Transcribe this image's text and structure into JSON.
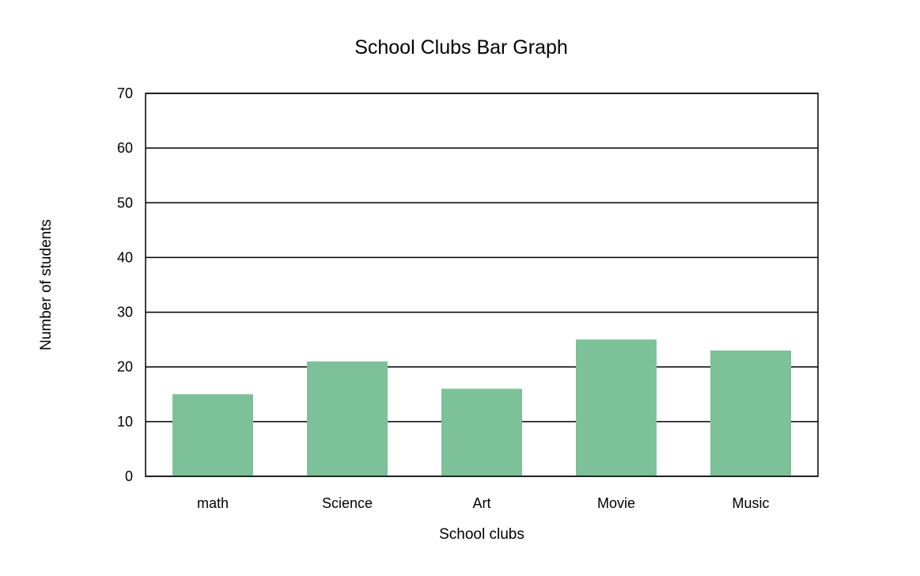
{
  "chart_data": {
    "type": "bar",
    "title": "School Clubs Bar Graph",
    "xlabel": "School clubs",
    "ylabel": "Number of students",
    "categories": [
      "math",
      "Science",
      "Art",
      "Movie",
      "Music"
    ],
    "values": [
      15,
      21,
      16,
      25,
      23
    ],
    "ylim": [
      0,
      70
    ],
    "yticks": [
      0,
      10,
      20,
      30,
      40,
      50,
      60,
      70
    ],
    "yticks_labels": [
      "0",
      "10",
      "20",
      "30",
      "40",
      "50",
      "60",
      "70"
    ],
    "grid": true,
    "legend": "none",
    "bar_color": "#7cc197",
    "grid_color": "#000000"
  }
}
